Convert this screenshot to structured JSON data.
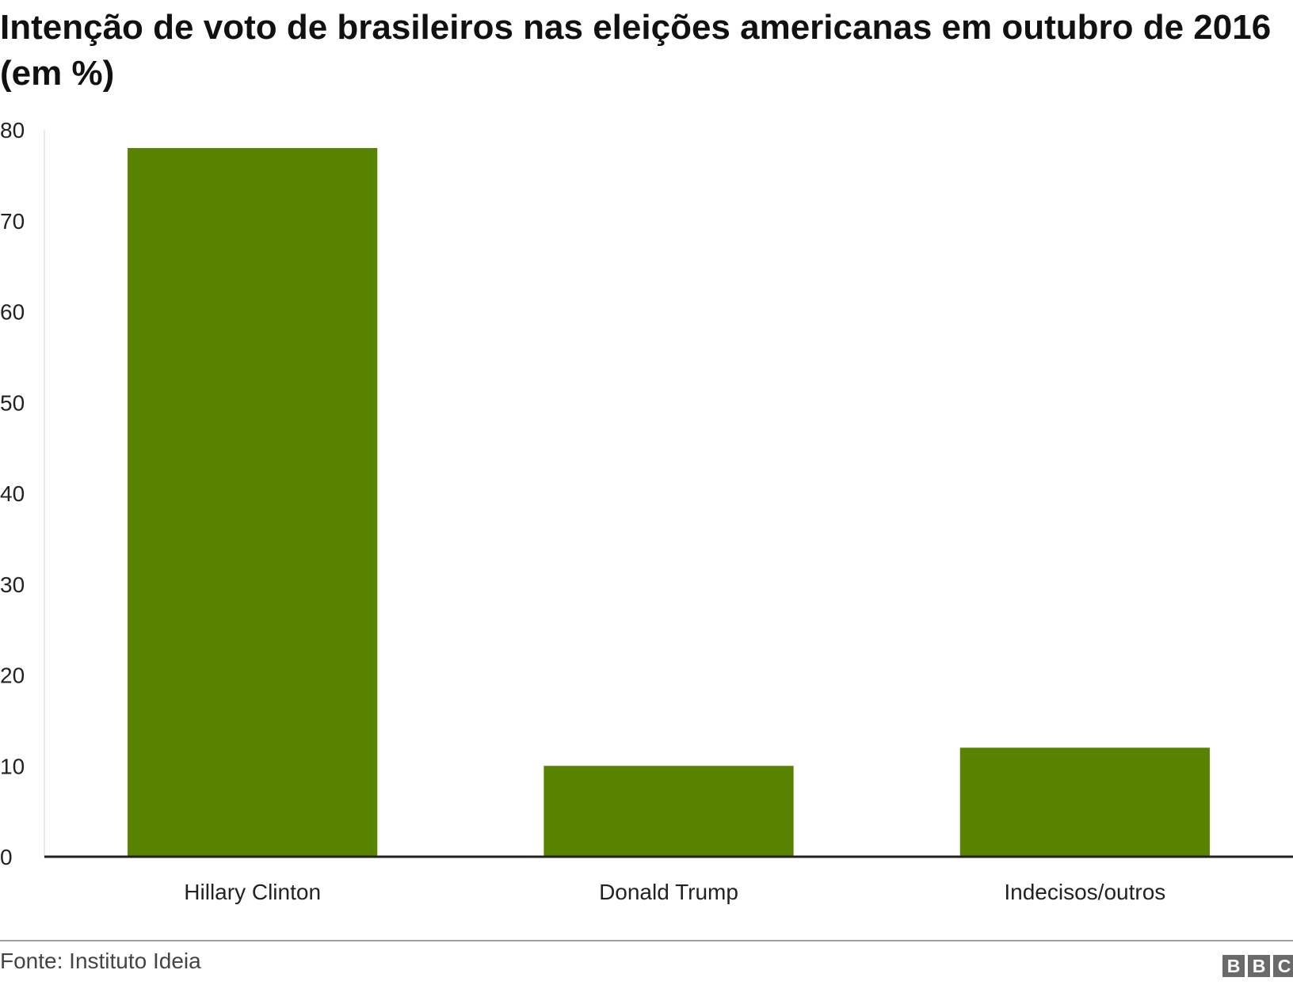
{
  "chart_data": {
    "type": "bar",
    "title": "Intenção de voto de brasileiros nas eleições americanas em outubro de 2016 (em %)",
    "categories": [
      "Hillary Clinton",
      "Donald Trump",
      "Indecisos/outros"
    ],
    "values": [
      78,
      10,
      12
    ],
    "xlabel": "",
    "ylabel": "",
    "ylim": [
      0,
      80
    ],
    "yticks": [
      0,
      10,
      20,
      30,
      40,
      50,
      60,
      70,
      80
    ],
    "grid": false,
    "legend": "none",
    "bar_color": "#588300"
  },
  "footer": {
    "source": "Fonte: Instituto Ideia",
    "logo_letters": [
      "B",
      "B",
      "C"
    ]
  }
}
